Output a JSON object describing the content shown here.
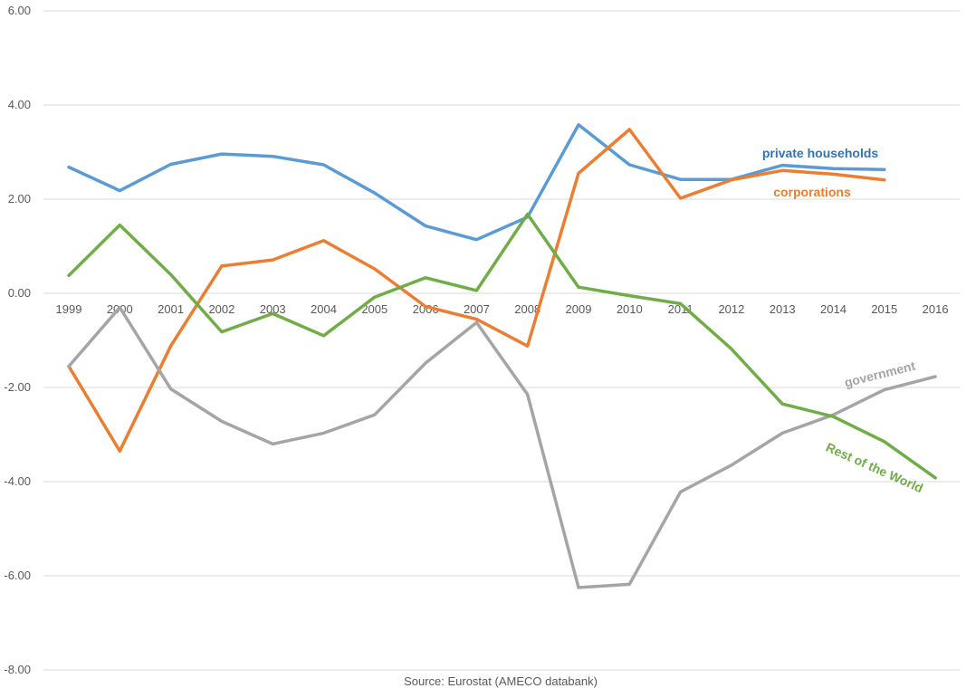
{
  "chart_data": {
    "type": "line",
    "x": [
      "1999",
      "2000",
      "2001",
      "2002",
      "2003",
      "2004",
      "2005",
      "2006",
      "2007",
      "2008",
      "2009",
      "2010",
      "2011",
      "2012",
      "2013",
      "2014",
      "2015",
      "2016"
    ],
    "ylim": [
      -8,
      6
    ],
    "yticks": [
      "6.00",
      "4.00",
      "2.00",
      "0.00",
      "-2.00",
      "-4.00",
      "-6.00",
      "-8.00"
    ],
    "grid": true,
    "legend": "none",
    "source": "Source: Eurostat (AMECO databank)",
    "series": [
      {
        "name": "private households",
        "color": "#5b9bd5",
        "values": [
          2.68,
          2.18,
          2.74,
          2.96,
          2.91,
          2.73,
          2.13,
          1.43,
          1.14,
          1.62,
          3.58,
          2.73,
          2.42,
          2.42,
          2.72,
          2.65,
          2.63,
          null
        ]
      },
      {
        "name": "corporations",
        "color": "#ed7d31",
        "values": [
          -1.55,
          -3.35,
          -1.12,
          0.58,
          0.71,
          1.12,
          0.52,
          -0.28,
          -0.55,
          -1.12,
          2.55,
          3.48,
          2.02,
          2.41,
          2.61,
          2.53,
          2.41,
          null
        ]
      },
      {
        "name": "government",
        "color": "#a5a5a5",
        "values": [
          -1.55,
          -0.3,
          -2.03,
          -2.72,
          -3.2,
          -2.97,
          -2.58,
          -1.48,
          -0.62,
          -2.15,
          -6.25,
          -6.18,
          -4.22,
          -3.65,
          -2.97,
          -2.58,
          -2.05,
          -1.77
        ]
      },
      {
        "name": "Rest of the World",
        "color": "#70ad47",
        "values": [
          0.38,
          1.45,
          0.4,
          -0.82,
          -0.43,
          -0.9,
          -0.08,
          0.33,
          0.06,
          1.68,
          0.13,
          -0.05,
          -0.22,
          -1.18,
          -2.35,
          -2.62,
          -3.15,
          -3.92
        ]
      }
    ]
  }
}
